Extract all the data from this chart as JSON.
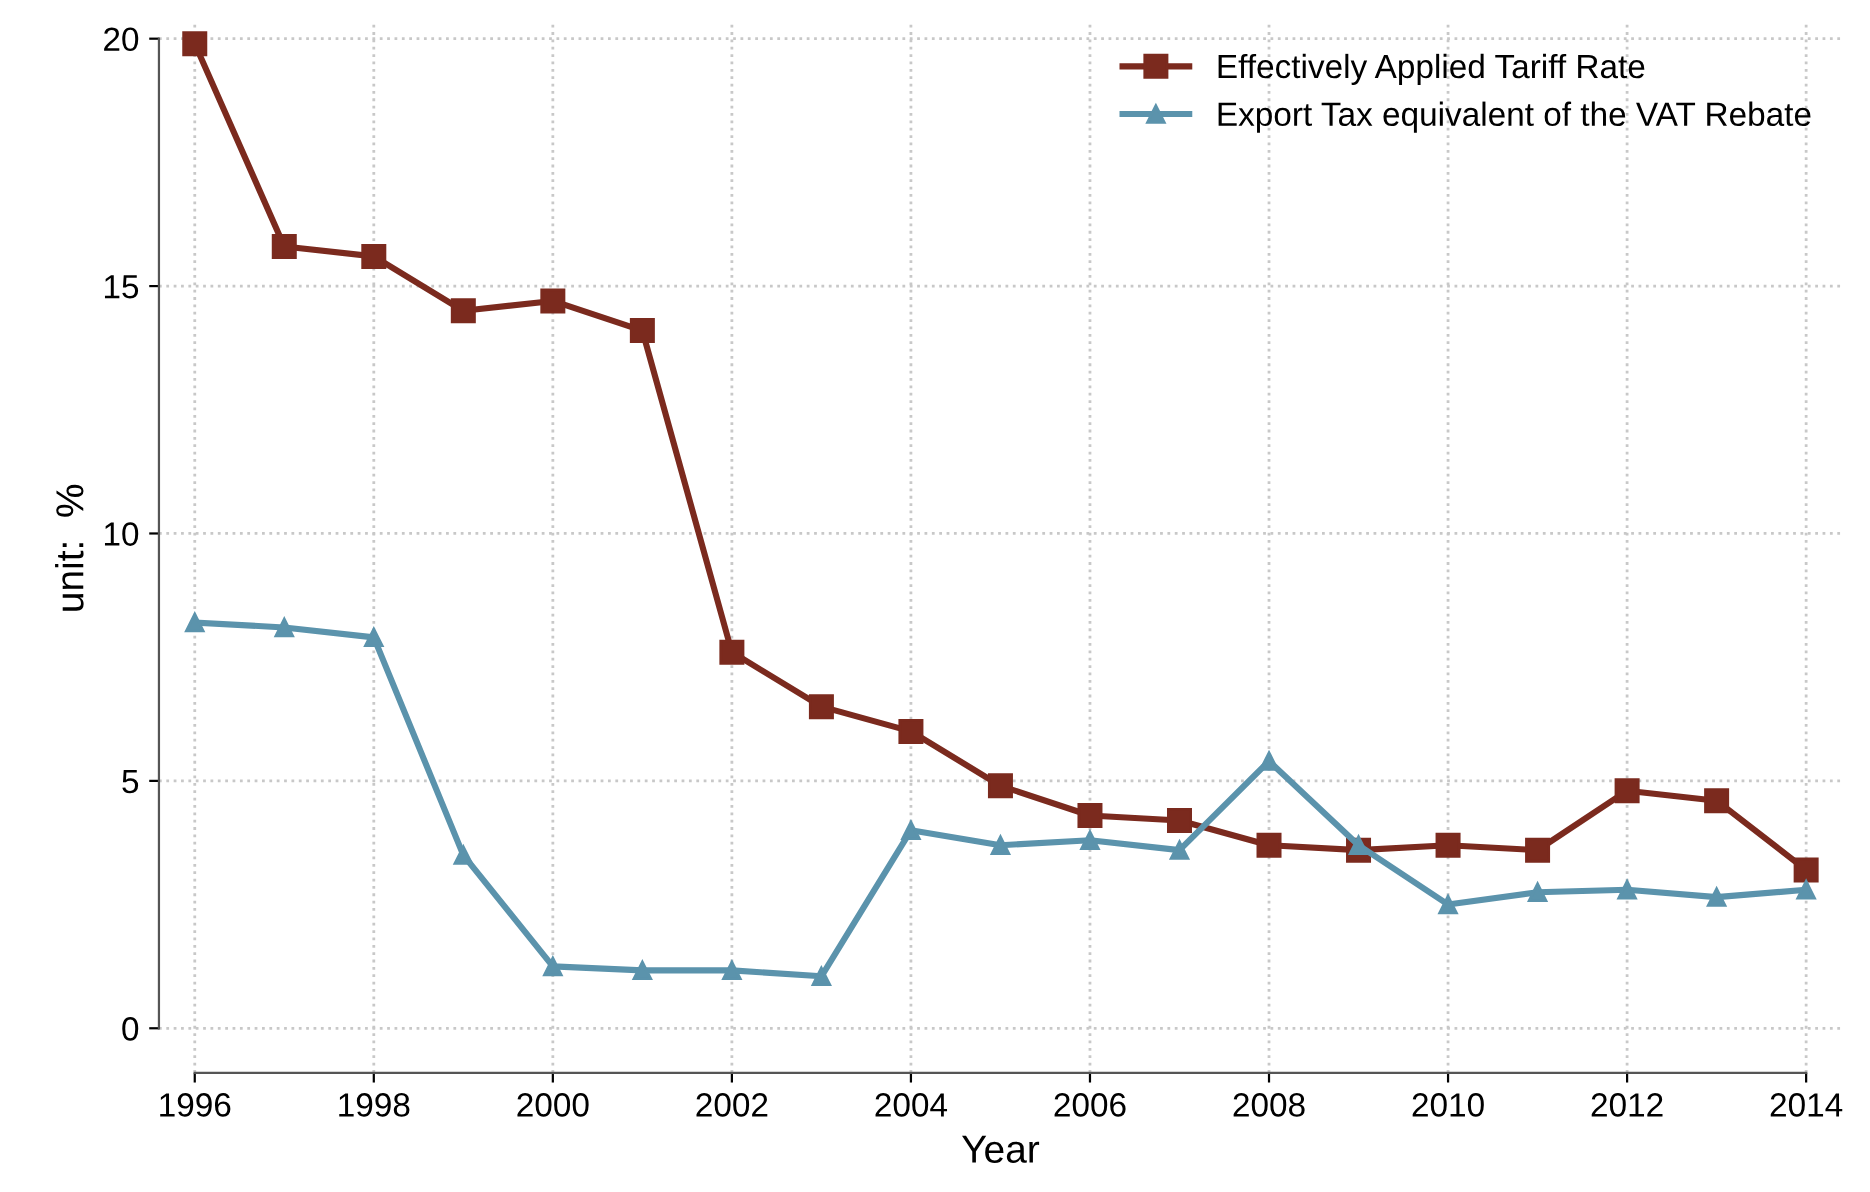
{
  "chart_data": {
    "type": "line",
    "xlabel": "Year",
    "ylabel": "unit:  %",
    "x": [
      1996,
      1997,
      1998,
      1999,
      2000,
      2001,
      2002,
      2003,
      2004,
      2005,
      2006,
      2007,
      2008,
      2009,
      2010,
      2011,
      2012,
      2013,
      2014
    ],
    "series": [
      {
        "name": "Effectively Applied Tariff Rate",
        "color": "#7b2a1e",
        "marker": "square",
        "values": [
          19.9,
          15.8,
          15.6,
          14.5,
          14.7,
          14.1,
          7.6,
          6.5,
          6.0,
          4.9,
          4.3,
          4.2,
          3.7,
          3.6,
          3.7,
          3.6,
          4.8,
          4.6,
          3.2
        ]
      },
      {
        "name": "Export Tax equivalent of the VAT Rebate",
        "color": "#5b93ac",
        "marker": "triangle",
        "values": [
          8.2,
          8.1,
          7.9,
          3.5,
          1.25,
          1.17,
          1.17,
          1.05,
          4.0,
          3.7,
          3.8,
          3.6,
          5.4,
          3.7,
          2.5,
          2.75,
          2.8,
          2.65,
          2.8
        ]
      }
    ],
    "xlim": [
      1995.6,
      2014.4
    ],
    "ylim": [
      -0.9,
      20.3
    ],
    "xticks": [
      1996,
      1998,
      2000,
      2002,
      2004,
      2006,
      2008,
      2010,
      2012,
      2014
    ],
    "yticks": [
      0,
      5,
      10,
      15,
      20
    ],
    "grid": true,
    "legend": "top right",
    "line_style": "solid"
  }
}
